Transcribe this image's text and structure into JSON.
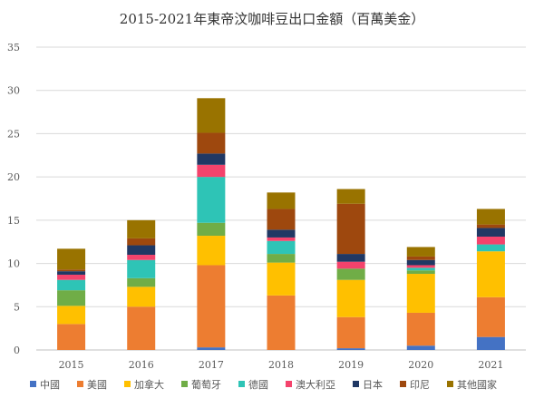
{
  "chart_data": {
    "type": "bar",
    "stacked": true,
    "title": "2015-2021年東帝汶咖啡豆出口金額（百萬美金）",
    "categories": [
      "2015",
      "2016",
      "2017",
      "2018",
      "2019",
      "2020",
      "2021"
    ],
    "ylim": [
      0,
      35
    ],
    "yticks": [
      0,
      5,
      10,
      15,
      20,
      25,
      30,
      35
    ],
    "grid": true,
    "legend_position": "bottom",
    "series": [
      {
        "name": "中國",
        "color": "#4472C4",
        "values": [
          0,
          0,
          0.3,
          0,
          0.2,
          0.5,
          1.5
        ]
      },
      {
        "name": "美國",
        "color": "#ED7D31",
        "values": [
          3.0,
          5.0,
          9.5,
          6.3,
          3.6,
          3.8,
          4.6
        ]
      },
      {
        "name": "加拿大",
        "color": "#FFC000",
        "values": [
          2.1,
          2.3,
          3.4,
          3.8,
          4.3,
          4.5,
          5.3
        ]
      },
      {
        "name": "葡萄牙",
        "color": "#70AD47",
        "values": [
          1.8,
          1.0,
          1.5,
          1.0,
          1.3,
          0.4,
          0
        ]
      },
      {
        "name": "德國",
        "color": "#2EC4B6",
        "values": [
          1.2,
          2.1,
          5.3,
          1.5,
          0,
          0.3,
          0.8
        ]
      },
      {
        "name": "澳大利亞",
        "color": "#F4436C",
        "values": [
          0.6,
          0.6,
          1.4,
          0.4,
          0.8,
          0.3,
          0.9
        ]
      },
      {
        "name": "日本",
        "color": "#203864",
        "values": [
          0.4,
          1.1,
          1.3,
          0.9,
          0.9,
          0.6,
          1.0
        ]
      },
      {
        "name": "印尼",
        "color": "#9E480E",
        "values": [
          0.2,
          0.8,
          2.4,
          2.4,
          5.8,
          0.4,
          0.4
        ]
      },
      {
        "name": "其他國家",
        "color": "#997300",
        "values": [
          2.4,
          2.1,
          4.0,
          1.9,
          1.7,
          1.1,
          1.8
        ]
      }
    ]
  }
}
